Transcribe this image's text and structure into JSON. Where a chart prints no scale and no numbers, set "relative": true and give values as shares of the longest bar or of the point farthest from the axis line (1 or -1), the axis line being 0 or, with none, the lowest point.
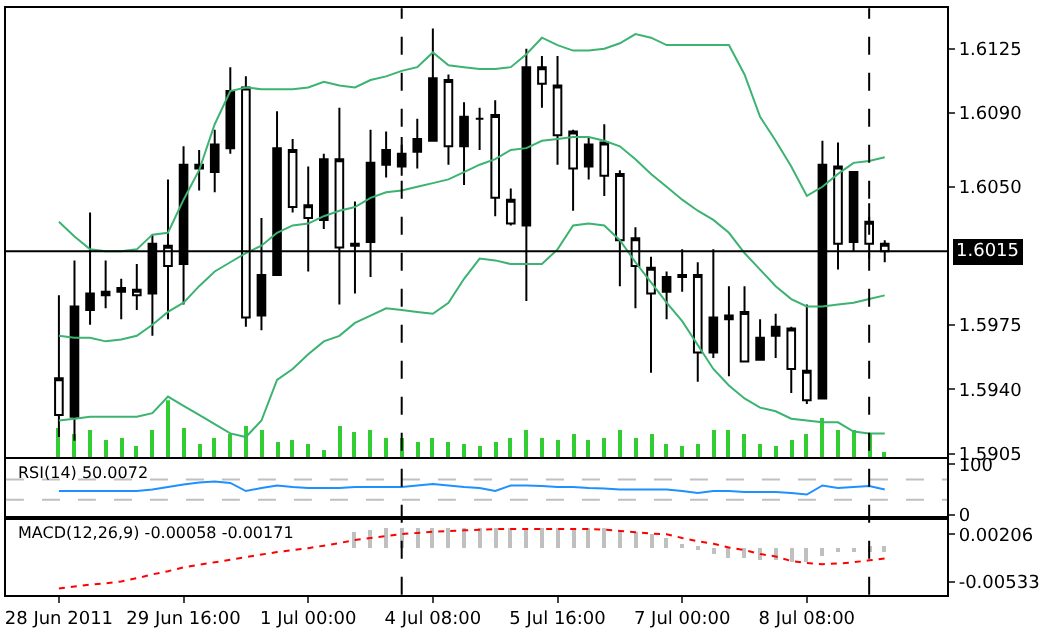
{
  "chart_data": [
    {
      "type": "candlestick",
      "categories": [
        null,
        null,
        null,
        null,
        null,
        null,
        null,
        null,
        null,
        null,
        null,
        null,
        null,
        null,
        null,
        null,
        null,
        null,
        null,
        null,
        null,
        null,
        null,
        null,
        null,
        null,
        null,
        null,
        null,
        null,
        null,
        null,
        null,
        null,
        null,
        null,
        null,
        null,
        null,
        null,
        null,
        null,
        null,
        null,
        null,
        null,
        null,
        null,
        null,
        null,
        null,
        null,
        null,
        null
      ],
      "ohlc": [
        [
          1.5926,
          1.5991,
          1.5914,
          1.5946
        ],
        [
          1.5985,
          1.601,
          1.5912,
          1.5925
        ],
        [
          1.5992,
          1.6036,
          1.5975,
          1.5983
        ],
        [
          1.5993,
          1.601,
          1.5984,
          1.5991
        ],
        [
          1.5995,
          1.6,
          1.5978,
          1.5993
        ],
        [
          1.5991,
          1.6008,
          1.5983,
          1.5994
        ],
        [
          1.6019,
          1.6024,
          1.5969,
          1.5992
        ],
        [
          1.6007,
          1.6054,
          1.5978,
          1.6018
        ],
        [
          1.6062,
          1.6072,
          1.5986,
          1.6008
        ],
        [
          1.606,
          1.607,
          1.6048,
          1.6062
        ],
        [
          1.6073,
          1.6081,
          1.6047,
          1.6058
        ],
        [
          1.6102,
          1.6115,
          1.6068,
          1.6071
        ],
        [
          1.5979,
          1.611,
          1.5974,
          1.6104
        ],
        [
          1.6002,
          1.6033,
          1.5972,
          1.598
        ],
        [
          1.6071,
          1.6091,
          1.6002,
          1.6002
        ],
        [
          1.6039,
          1.6076,
          1.6036,
          1.607
        ],
        [
          1.6033,
          1.6061,
          1.6004,
          1.604
        ],
        [
          1.6065,
          1.6068,
          1.6027,
          1.6032
        ],
        [
          1.6017,
          1.6093,
          1.5986,
          1.6065
        ],
        [
          1.6019,
          1.6042,
          1.5992,
          1.6018
        ],
        [
          1.6063,
          1.6081,
          1.6001,
          1.602
        ],
        [
          1.607,
          1.608,
          1.6055,
          1.6062
        ],
        [
          1.6068,
          1.6077,
          1.6056,
          1.6061
        ],
        [
          1.6076,
          1.6087,
          1.606,
          1.6069
        ],
        [
          1.6109,
          1.6136,
          1.6075,
          1.6075
        ],
        [
          1.6072,
          1.6111,
          1.6062,
          1.6108
        ],
        [
          1.6088,
          1.6096,
          1.6051,
          1.6072
        ],
        [
          1.6087,
          1.6093,
          1.607,
          1.6087
        ],
        [
          1.6044,
          1.6097,
          1.6034,
          1.6089
        ],
        [
          1.603,
          1.6049,
          1.6029,
          1.6043
        ],
        [
          1.6115,
          1.6125,
          1.5988,
          1.6029
        ],
        [
          1.6106,
          1.6121,
          1.6093,
          1.6115
        ],
        [
          1.6078,
          1.6121,
          1.6062,
          1.6105
        ],
        [
          1.606,
          1.6081,
          1.6037,
          1.608
        ],
        [
          1.6073,
          1.6077,
          1.6054,
          1.6061
        ],
        [
          1.6056,
          1.6084,
          1.6045,
          1.6074
        ],
        [
          1.6021,
          1.6059,
          1.5996,
          1.6057
        ],
        [
          1.6007,
          1.6028,
          1.5984,
          1.6022
        ],
        [
          1.5992,
          1.6012,
          1.5949,
          1.6006
        ],
        [
          1.6001,
          1.6004,
          1.5978,
          1.5993
        ],
        [
          1.6002,
          1.6016,
          1.5993,
          1.6001
        ],
        [
          1.596,
          1.6009,
          1.5944,
          1.6002
        ],
        [
          1.5979,
          1.6016,
          1.5957,
          1.596
        ],
        [
          1.598,
          1.5996,
          1.5947,
          1.5978
        ],
        [
          1.5955,
          1.5996,
          1.5955,
          1.5982
        ],
        [
          1.5968,
          1.5978,
          1.5956,
          1.5956
        ],
        [
          1.5974,
          1.5981,
          1.5957,
          1.5969
        ],
        [
          1.5951,
          1.5974,
          1.5938,
          1.5973
        ],
        [
          1.5934,
          1.5986,
          1.5932,
          1.595
        ],
        [
          1.6062,
          1.6075,
          1.5935,
          1.5935
        ],
        [
          1.6019,
          1.6074,
          1.6005,
          1.6061
        ],
        [
          1.6058,
          1.6058,
          1.6015,
          1.602
        ],
        [
          1.6019,
          1.6041,
          1.6011,
          1.6031
        ],
        [
          1.6015,
          1.6021,
          1.6009,
          1.6019
        ]
      ],
      "series": [
        {
          "type": "line",
          "color": "#3cb371",
          "values": [
            1.6031,
            1.6023,
            1.6016,
            1.6015,
            1.6015,
            1.6016,
            1.6024,
            1.6025,
            1.6043,
            1.6059,
            1.6084,
            1.6102,
            1.6104,
            1.6103,
            1.6103,
            1.6103,
            1.6104,
            1.6107,
            1.6105,
            1.6104,
            1.6108,
            1.611,
            1.6113,
            1.6115,
            1.6123,
            1.6116,
            1.6115,
            1.6114,
            1.6114,
            1.6115,
            1.6122,
            1.6131,
            1.6127,
            1.6124,
            1.6124,
            1.6125,
            1.6128,
            1.6133,
            1.6131,
            1.6127,
            1.6127,
            1.6127,
            1.6127,
            1.6127,
            1.6111,
            1.6088,
            1.6075,
            1.6061,
            1.6045,
            1.605,
            1.6057,
            1.6063,
            1.6064,
            1.6066
          ]
        },
        {
          "type": "line",
          "color": "#3cb371",
          "values": [
            1.5969,
            1.5968,
            1.5968,
            1.5966,
            1.5967,
            1.5969,
            1.5975,
            1.5982,
            1.5987,
            1.5996,
            1.6004,
            1.6009,
            1.6014,
            1.6018,
            1.6025,
            1.6029,
            1.603,
            1.6034,
            1.6037,
            1.6039,
            1.6044,
            1.6047,
            1.6048,
            1.605,
            1.6052,
            1.6054,
            1.6058,
            1.6062,
            1.6065,
            1.607,
            1.6071,
            1.6075,
            1.6076,
            1.6077,
            1.6077,
            1.6075,
            1.6072,
            1.6065,
            1.6057,
            1.605,
            1.6043,
            1.6037,
            1.6032,
            1.6025,
            1.6014,
            1.6005,
            1.5996,
            1.5989,
            1.5985,
            1.5985,
            1.5986,
            1.5987,
            1.5989,
            1.5991
          ]
        },
        {
          "type": "line",
          "color": "#3cb371",
          "values": [
            1.5923,
            1.5924,
            1.5925,
            1.5925,
            1.5925,
            1.5925,
            1.5927,
            1.5936,
            1.5931,
            1.5926,
            1.5921,
            1.5916,
            1.5914,
            1.5923,
            1.5945,
            1.5951,
            1.5959,
            1.5966,
            1.5969,
            1.5976,
            1.598,
            1.5984,
            1.5983,
            1.5982,
            1.5981,
            1.5987,
            1.6,
            1.6011,
            1.601,
            1.6008,
            1.6008,
            1.6008,
            1.6016,
            1.6029,
            1.603,
            1.6029,
            1.6021,
            1.6009,
            1.5998,
            1.5987,
            1.5977,
            1.5964,
            1.5951,
            1.5942,
            1.5935,
            1.593,
            1.5928,
            1.5924,
            1.5923,
            1.5922,
            1.5922,
            1.5917,
            1.5916,
            1.5916
          ]
        }
      ],
      "ylim": [
        1.5903,
        1.6147
      ],
      "yticks": [
        1.6125,
        {
          "value": 1.609,
          "label": "1.6090"
        },
        {
          "value": 1.605,
          "label": "1.6050"
        },
        1.5975,
        {
          "value": 1.594,
          "label": "1.5940"
        },
        1.5905
      ],
      "ref_lines": [
        {
          "axis": "y",
          "value": 1.6015,
          "label": "1.6015",
          "color": "#000000",
          "line_style": "solid"
        }
      ],
      "tick_labels": "y"
    },
    {
      "type": "bar",
      "relative": true,
      "color": "#32cd32",
      "categories": [
        null,
        null,
        null,
        null,
        null,
        null,
        null,
        null,
        null,
        null,
        null,
        null,
        null,
        null,
        null,
        null,
        null,
        null,
        null,
        null,
        null,
        null,
        null,
        null,
        null,
        null,
        null,
        null,
        null,
        null,
        null,
        null,
        null,
        null,
        null,
        null,
        null,
        null,
        null,
        null,
        null,
        null,
        null,
        null,
        null,
        null,
        null,
        null,
        null,
        null,
        null,
        null,
        null,
        null
      ],
      "values": [
        0.52,
        0.41,
        0.47,
        0.3,
        0.35,
        0.18,
        0.47,
        1,
        0.52,
        0.24,
        0.35,
        0.41,
        0.55,
        0.47,
        0.27,
        0.3,
        0.24,
        0.13,
        0.55,
        0.43,
        0.47,
        0.32,
        0.35,
        0.27,
        0.35,
        0.27,
        0.23,
        0.18,
        0.27,
        0.35,
        0.47,
        0.35,
        0.3,
        0.41,
        0.3,
        0.35,
        0.47,
        0.35,
        0.41,
        0.24,
        0.18,
        0.24,
        0.47,
        0.47,
        0.41,
        0.24,
        0.18,
        0.3,
        0.41,
        0.69,
        0.47,
        0.47,
        0.41,
        0.1
      ],
      "tick_labels": false
    },
    {
      "type": "line",
      "title": "RSI(14) 50.0072",
      "categories": [
        null,
        null,
        null,
        null,
        null,
        null,
        null,
        null,
        null,
        null,
        null,
        null,
        null,
        null,
        null,
        null,
        null,
        null,
        null,
        null,
        null,
        null,
        null,
        null,
        null,
        null,
        null,
        null,
        null,
        null,
        null,
        null,
        null,
        null,
        null,
        null,
        null,
        null,
        null,
        null,
        null,
        null,
        null,
        null,
        null,
        null,
        null,
        null,
        null,
        null,
        null,
        null,
        null,
        null
      ],
      "series": [
        {
          "color": "#1e90ff",
          "values": [
            47,
            47,
            47,
            47,
            47,
            47,
            50,
            55,
            60,
            64,
            66,
            63,
            47,
            53,
            58,
            55,
            53,
            53,
            53,
            55,
            55,
            55,
            55,
            58,
            61,
            58,
            55,
            53,
            47,
            58,
            58,
            57,
            55,
            55,
            53,
            52,
            50,
            50,
            50,
            50,
            47,
            43,
            47,
            47,
            45,
            45,
            45,
            43,
            40,
            58,
            53,
            55,
            57,
            50.0072
          ]
        }
      ],
      "ylim": [
        -3,
        110
      ],
      "yticks": [
        100,
        0
      ],
      "ref_lines": [
        {
          "axis": "y",
          "value": 70,
          "color": "#c0c0c0",
          "line_style": "dashed"
        },
        {
          "axis": "y",
          "value": 30,
          "color": "#c0c0c0",
          "line_style": "dashed"
        }
      ],
      "tick_labels": "y"
    },
    {
      "type": "bar",
      "title": "MACD(12,26,9) -0.00058 -0.00171",
      "categories": [
        "28 Jun 2011",
        null,
        null,
        null,
        null,
        null,
        null,
        null,
        "29 Jun 16:00",
        null,
        null,
        null,
        null,
        null,
        null,
        null,
        "1 Jul 00:00",
        null,
        null,
        null,
        null,
        null,
        null,
        null,
        "4 Jul 08:00",
        null,
        null,
        null,
        null,
        null,
        null,
        null,
        "5 Jul 16:00",
        null,
        null,
        null,
        null,
        null,
        null,
        null,
        "7 Jul 00:00",
        null,
        null,
        null,
        null,
        null,
        null,
        null,
        "8 Jul 08:00",
        null,
        null,
        null,
        null,
        null
      ],
      "series": [
        {
          "type": "bar",
          "color": "#c0c0c0",
          "values": [
            null,
            null,
            null,
            null,
            null,
            null,
            null,
            null,
            null,
            null,
            null,
            null,
            null,
            null,
            null,
            null,
            null,
            null,
            null,
            0.0025,
            0.0028,
            0.003,
            0.003,
            0.003,
            0.003,
            0.003,
            0.003,
            0.003,
            0.003,
            0.003,
            0.003,
            0.003,
            0.003,
            0.003,
            0.003,
            0.003,
            0.0027,
            0.0024,
            0.002,
            0.0015,
            0.0005,
            -0.0005,
            -0.001,
            -0.0015,
            -0.0018,
            -0.002,
            -0.0021,
            -0.0022,
            -0.0022,
            -0.0012,
            -0.0008,
            -0.0007,
            -0.0006,
            -0.00058
          ]
        },
        {
          "type": "line",
          "color": "#ff0000",
          "line_style": "dotted",
          "values": [
            -0.0064,
            -0.0061,
            -0.0058,
            -0.0056,
            -0.0053,
            -0.0048,
            -0.0042,
            -0.0037,
            -0.0031,
            -0.0027,
            -0.0023,
            -0.0019,
            -0.0015,
            -0.0011,
            -0.0007,
            -0.0004,
            -0.0001,
            0.0003,
            0.0007,
            0.0012,
            0.0015,
            0.0018,
            0.0021,
            0.0023,
            0.0025,
            0.0026,
            0.0027,
            0.0028,
            0.0029,
            0.0029,
            0.0029,
            0.0029,
            0.0029,
            0.0029,
            0.0029,
            0.0028,
            0.0026,
            0.0024,
            0.0022,
            0.0021,
            0.0015,
            0.001,
            0.0006,
            0.0,
            -0.0004,
            -0.001,
            -0.0014,
            -0.0021,
            -0.0024,
            -0.0026,
            -0.0025,
            -0.0023,
            -0.002,
            -0.00171
          ]
        }
      ],
      "ylim": [
        -0.0074,
        0.0043
      ],
      "yticks": [
        0.00206,
        -0.00533
      ]
    }
  ]
}
